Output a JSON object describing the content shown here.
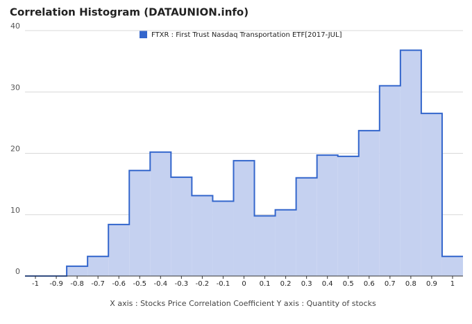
{
  "chart_data": {
    "type": "histogram",
    "title": "Correlation Histogram (DATAUNION.info)",
    "legend": "FTXR : First Trust Nasdaq Transportation ETF[2017-JUL]",
    "axis_note": "X axis : Stocks Price Correlation Coefficient  Y axis : Quantity of stocks",
    "x": [
      -1,
      -0.9,
      -0.8,
      -0.7,
      -0.6,
      -0.5,
      -0.4,
      -0.3,
      -0.2,
      -0.1,
      0,
      0.1,
      0.2,
      0.3,
      0.4,
      0.5,
      0.6,
      0.7,
      0.8,
      0.9,
      1
    ],
    "values": [
      0,
      0,
      1.6,
      3.2,
      8.4,
      17.2,
      20.2,
      16.1,
      13.1,
      12.2,
      18.8,
      9.8,
      10.8,
      16.0,
      19.7,
      19.5,
      23.7,
      31.0,
      36.8,
      26.5,
      3.2
    ],
    "bin_width": 0.1,
    "color": "#3366cc",
    "fill": "#c5d1f0",
    "xlim": [
      -1.05,
      1.05
    ],
    "xticks": [
      -1,
      -0.9,
      -0.8,
      -0.7,
      -0.6,
      -0.5,
      -0.4,
      -0.3,
      -0.2,
      -0.1,
      0,
      0.1,
      0.2,
      0.3,
      0.4,
      0.5,
      0.6,
      0.7,
      0.8,
      0.9,
      1
    ],
    "ylim": [
      0,
      40
    ],
    "yticks": [
      0,
      10,
      20,
      30,
      40
    ],
    "grid": true
  }
}
